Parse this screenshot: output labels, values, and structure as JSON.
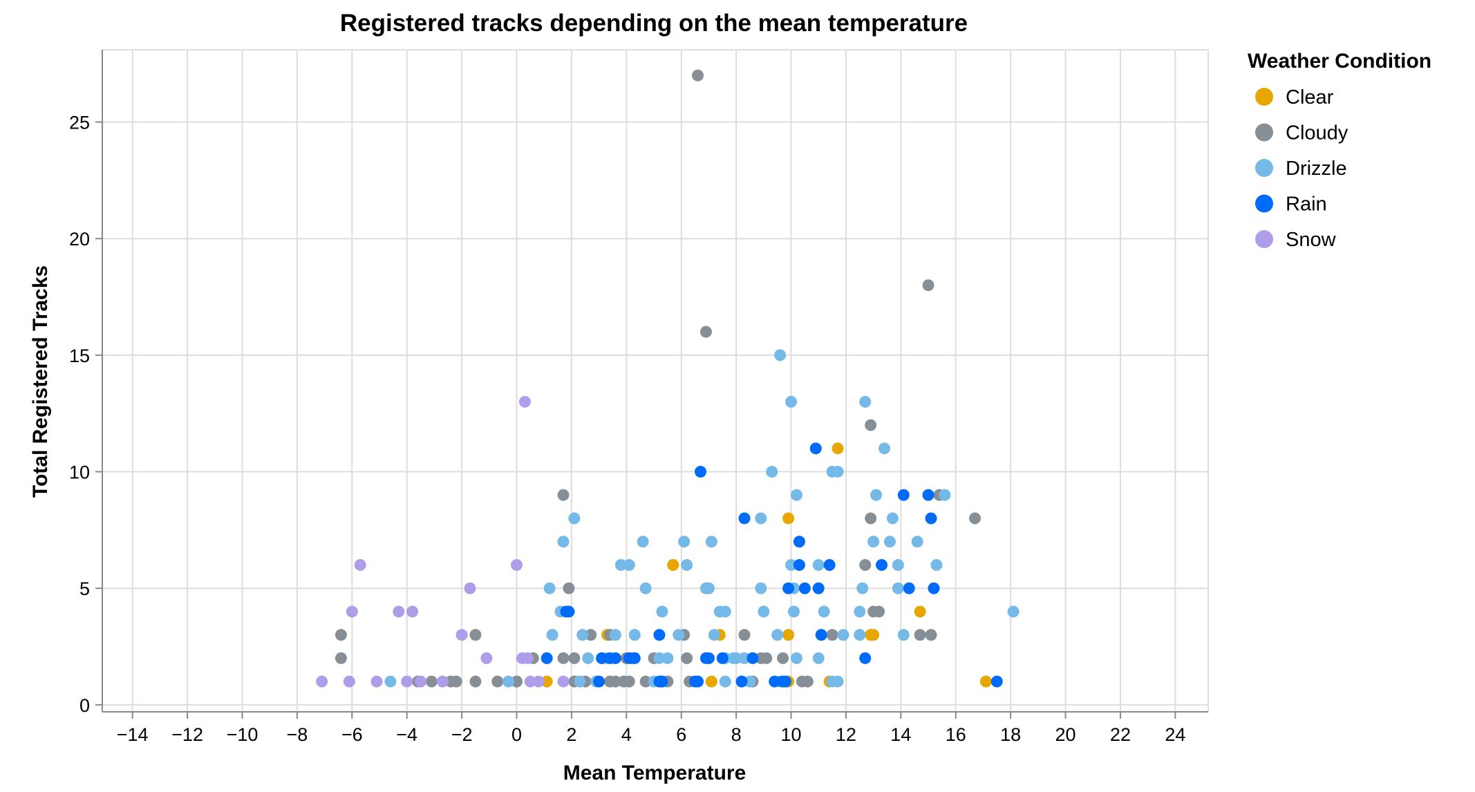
{
  "chart_data": {
    "type": "scatter",
    "title": "Registered tracks depending on the mean temperature",
    "xlabel": "Mean Temperature",
    "ylabel": "Total Registered Tracks",
    "xlim": [
      -15.1,
      25.2
    ],
    "ylim": [
      -0.3,
      28.1
    ],
    "x_ticks": [
      "−14",
      "−12",
      "−10",
      "−8",
      "−6",
      "−4",
      "−2",
      "0",
      "2",
      "4",
      "6",
      "8",
      "10",
      "12",
      "14",
      "16",
      "18",
      "20",
      "22",
      "24"
    ],
    "x_tick_values": [
      -14,
      -12,
      -10,
      -8,
      -6,
      -4,
      -2,
      0,
      2,
      4,
      6,
      8,
      10,
      12,
      14,
      16,
      18,
      20,
      22,
      24
    ],
    "y_ticks": [
      "0",
      "5",
      "10",
      "15",
      "20",
      "25"
    ],
    "y_tick_values": [
      0,
      5,
      10,
      15,
      20,
      25
    ],
    "grid": true,
    "legend": {
      "title": "Weather Condition",
      "placement": "right"
    },
    "series": [
      {
        "name": "Clear",
        "color": "#e8a600",
        "points": [
          [
            1.1,
            1
          ],
          [
            3.3,
            3
          ],
          [
            3.4,
            1
          ],
          [
            5.7,
            6
          ],
          [
            5.7,
            6
          ],
          [
            7.1,
            1
          ],
          [
            7.4,
            3
          ],
          [
            9.9,
            8
          ],
          [
            9.9,
            3
          ],
          [
            9.9,
            1
          ],
          [
            11.4,
            1
          ],
          [
            11.7,
            11
          ],
          [
            12.9,
            3
          ],
          [
            13.0,
            3
          ],
          [
            14.7,
            4
          ],
          [
            17.1,
            1
          ]
        ]
      },
      {
        "name": "Cloudy",
        "color": "#868e96",
        "points": [
          [
            6.6,
            27
          ],
          [
            15.0,
            18
          ],
          [
            6.9,
            16
          ],
          [
            12.9,
            12
          ],
          [
            1.7,
            9
          ],
          [
            12.9,
            8
          ],
          [
            15.4,
            9
          ],
          [
            16.7,
            8
          ],
          [
            12.7,
            6
          ],
          [
            1.9,
            5
          ],
          [
            13.0,
            4
          ],
          [
            13.2,
            4
          ],
          [
            -6.4,
            3
          ],
          [
            -1.5,
            3
          ],
          [
            2.7,
            3
          ],
          [
            3.4,
            3
          ],
          [
            6.1,
            3
          ],
          [
            8.3,
            3
          ],
          [
            11.5,
            3
          ],
          [
            14.7,
            3
          ],
          [
            15.1,
            3
          ],
          [
            -6.4,
            2
          ],
          [
            0.6,
            2
          ],
          [
            1.7,
            2
          ],
          [
            2.1,
            2
          ],
          [
            4.0,
            2
          ],
          [
            4.2,
            2
          ],
          [
            5.0,
            2
          ],
          [
            6.2,
            2
          ],
          [
            8.9,
            2
          ],
          [
            9.1,
            2
          ],
          [
            9.7,
            2
          ],
          [
            -3.6,
            1
          ],
          [
            -3.1,
            1
          ],
          [
            -2.4,
            1
          ],
          [
            -2.2,
            1
          ],
          [
            -1.5,
            1
          ],
          [
            -0.7,
            1
          ],
          [
            0.0,
            1
          ],
          [
            2.1,
            1
          ],
          [
            2.5,
            1
          ],
          [
            2.9,
            1
          ],
          [
            3.4,
            1
          ],
          [
            3.6,
            1
          ],
          [
            3.9,
            1
          ],
          [
            4.1,
            1
          ],
          [
            4.7,
            1
          ],
          [
            5.5,
            1
          ],
          [
            6.3,
            1
          ],
          [
            8.6,
            1
          ],
          [
            10.4,
            1
          ],
          [
            10.6,
            1
          ]
        ]
      },
      {
        "name": "Drizzle",
        "color": "#74b9e7",
        "points": [
          [
            9.6,
            15
          ],
          [
            12.7,
            13
          ],
          [
            10.0,
            13
          ],
          [
            13.4,
            11
          ],
          [
            11.5,
            10
          ],
          [
            11.7,
            10
          ],
          [
            9.3,
            10
          ],
          [
            2.1,
            8
          ],
          [
            8.9,
            8
          ],
          [
            10.2,
            9
          ],
          [
            13.1,
            9
          ],
          [
            13.7,
            8
          ],
          [
            15.6,
            9
          ],
          [
            1.7,
            7
          ],
          [
            4.6,
            7
          ],
          [
            6.1,
            7
          ],
          [
            7.1,
            7
          ],
          [
            13.0,
            7
          ],
          [
            13.6,
            7
          ],
          [
            14.6,
            7
          ],
          [
            3.8,
            6
          ],
          [
            4.1,
            6
          ],
          [
            6.2,
            6
          ],
          [
            10.0,
            6
          ],
          [
            11.0,
            6
          ],
          [
            13.9,
            6
          ],
          [
            15.3,
            6
          ],
          [
            1.2,
            5
          ],
          [
            4.7,
            5
          ],
          [
            6.9,
            5
          ],
          [
            7.0,
            5
          ],
          [
            8.9,
            5
          ],
          [
            10.1,
            5
          ],
          [
            12.6,
            5
          ],
          [
            13.9,
            5
          ],
          [
            1.6,
            4
          ],
          [
            5.3,
            4
          ],
          [
            7.4,
            4
          ],
          [
            7.6,
            4
          ],
          [
            9.0,
            4
          ],
          [
            10.1,
            4
          ],
          [
            11.2,
            4
          ],
          [
            12.5,
            4
          ],
          [
            18.1,
            4
          ],
          [
            1.3,
            3
          ],
          [
            2.4,
            3
          ],
          [
            3.6,
            3
          ],
          [
            4.3,
            3
          ],
          [
            5.9,
            3
          ],
          [
            7.2,
            3
          ],
          [
            9.5,
            3
          ],
          [
            11.9,
            3
          ],
          [
            12.5,
            3
          ],
          [
            14.1,
            3
          ],
          [
            2.6,
            2
          ],
          [
            3.3,
            2
          ],
          [
            4.3,
            2
          ],
          [
            5.2,
            2
          ],
          [
            5.5,
            2
          ],
          [
            7.6,
            2
          ],
          [
            7.9,
            2
          ],
          [
            8.0,
            2
          ],
          [
            8.3,
            2
          ],
          [
            10.2,
            2
          ],
          [
            11.0,
            2
          ],
          [
            -4.6,
            1
          ],
          [
            -0.3,
            1
          ],
          [
            2.3,
            1
          ],
          [
            2.9,
            1
          ],
          [
            5.0,
            1
          ],
          [
            5.3,
            1
          ],
          [
            7.6,
            1
          ],
          [
            8.2,
            1
          ],
          [
            8.5,
            1
          ],
          [
            9.6,
            1
          ],
          [
            11.5,
            1
          ],
          [
            11.7,
            1
          ]
        ]
      },
      {
        "name": "Rain",
        "color": "#006af9",
        "points": [
          [
            6.7,
            10
          ],
          [
            10.9,
            11
          ],
          [
            8.3,
            8
          ],
          [
            14.1,
            9
          ],
          [
            15.0,
            9
          ],
          [
            15.1,
            8
          ],
          [
            10.3,
            7
          ],
          [
            10.3,
            6
          ],
          [
            11.4,
            6
          ],
          [
            13.3,
            6
          ],
          [
            9.9,
            5
          ],
          [
            10.5,
            5
          ],
          [
            11.0,
            5
          ],
          [
            14.3,
            5
          ],
          [
            15.2,
            5
          ],
          [
            1.8,
            4
          ],
          [
            1.9,
            4
          ],
          [
            5.2,
            3
          ],
          [
            11.1,
            3
          ],
          [
            1.1,
            2
          ],
          [
            3.1,
            2
          ],
          [
            3.4,
            2
          ],
          [
            3.6,
            2
          ],
          [
            4.1,
            2
          ],
          [
            4.3,
            2
          ],
          [
            6.9,
            2
          ],
          [
            7.0,
            2
          ],
          [
            7.5,
            2
          ],
          [
            8.6,
            2
          ],
          [
            12.7,
            2
          ],
          [
            3.0,
            1
          ],
          [
            5.2,
            1
          ],
          [
            5.3,
            1
          ],
          [
            6.5,
            1
          ],
          [
            6.6,
            1
          ],
          [
            8.2,
            1
          ],
          [
            9.4,
            1
          ],
          [
            9.7,
            1
          ],
          [
            9.8,
            1
          ],
          [
            17.5,
            1
          ]
        ]
      },
      {
        "name": "Snow",
        "color": "#b09de9",
        "points": [
          [
            0.3,
            13
          ],
          [
            -5.7,
            6
          ],
          [
            0.0,
            6
          ],
          [
            -6.0,
            4
          ],
          [
            -4.3,
            4
          ],
          [
            -3.8,
            4
          ],
          [
            -1.7,
            5
          ],
          [
            -2.0,
            3
          ],
          [
            -1.1,
            2
          ],
          [
            0.2,
            2
          ],
          [
            0.4,
            2
          ],
          [
            -7.1,
            1
          ],
          [
            -6.1,
            1
          ],
          [
            -5.1,
            1
          ],
          [
            -4.0,
            1
          ],
          [
            -3.5,
            1
          ],
          [
            -2.7,
            1
          ],
          [
            0.5,
            1
          ],
          [
            0.8,
            1
          ],
          [
            1.7,
            1
          ]
        ]
      }
    ]
  }
}
